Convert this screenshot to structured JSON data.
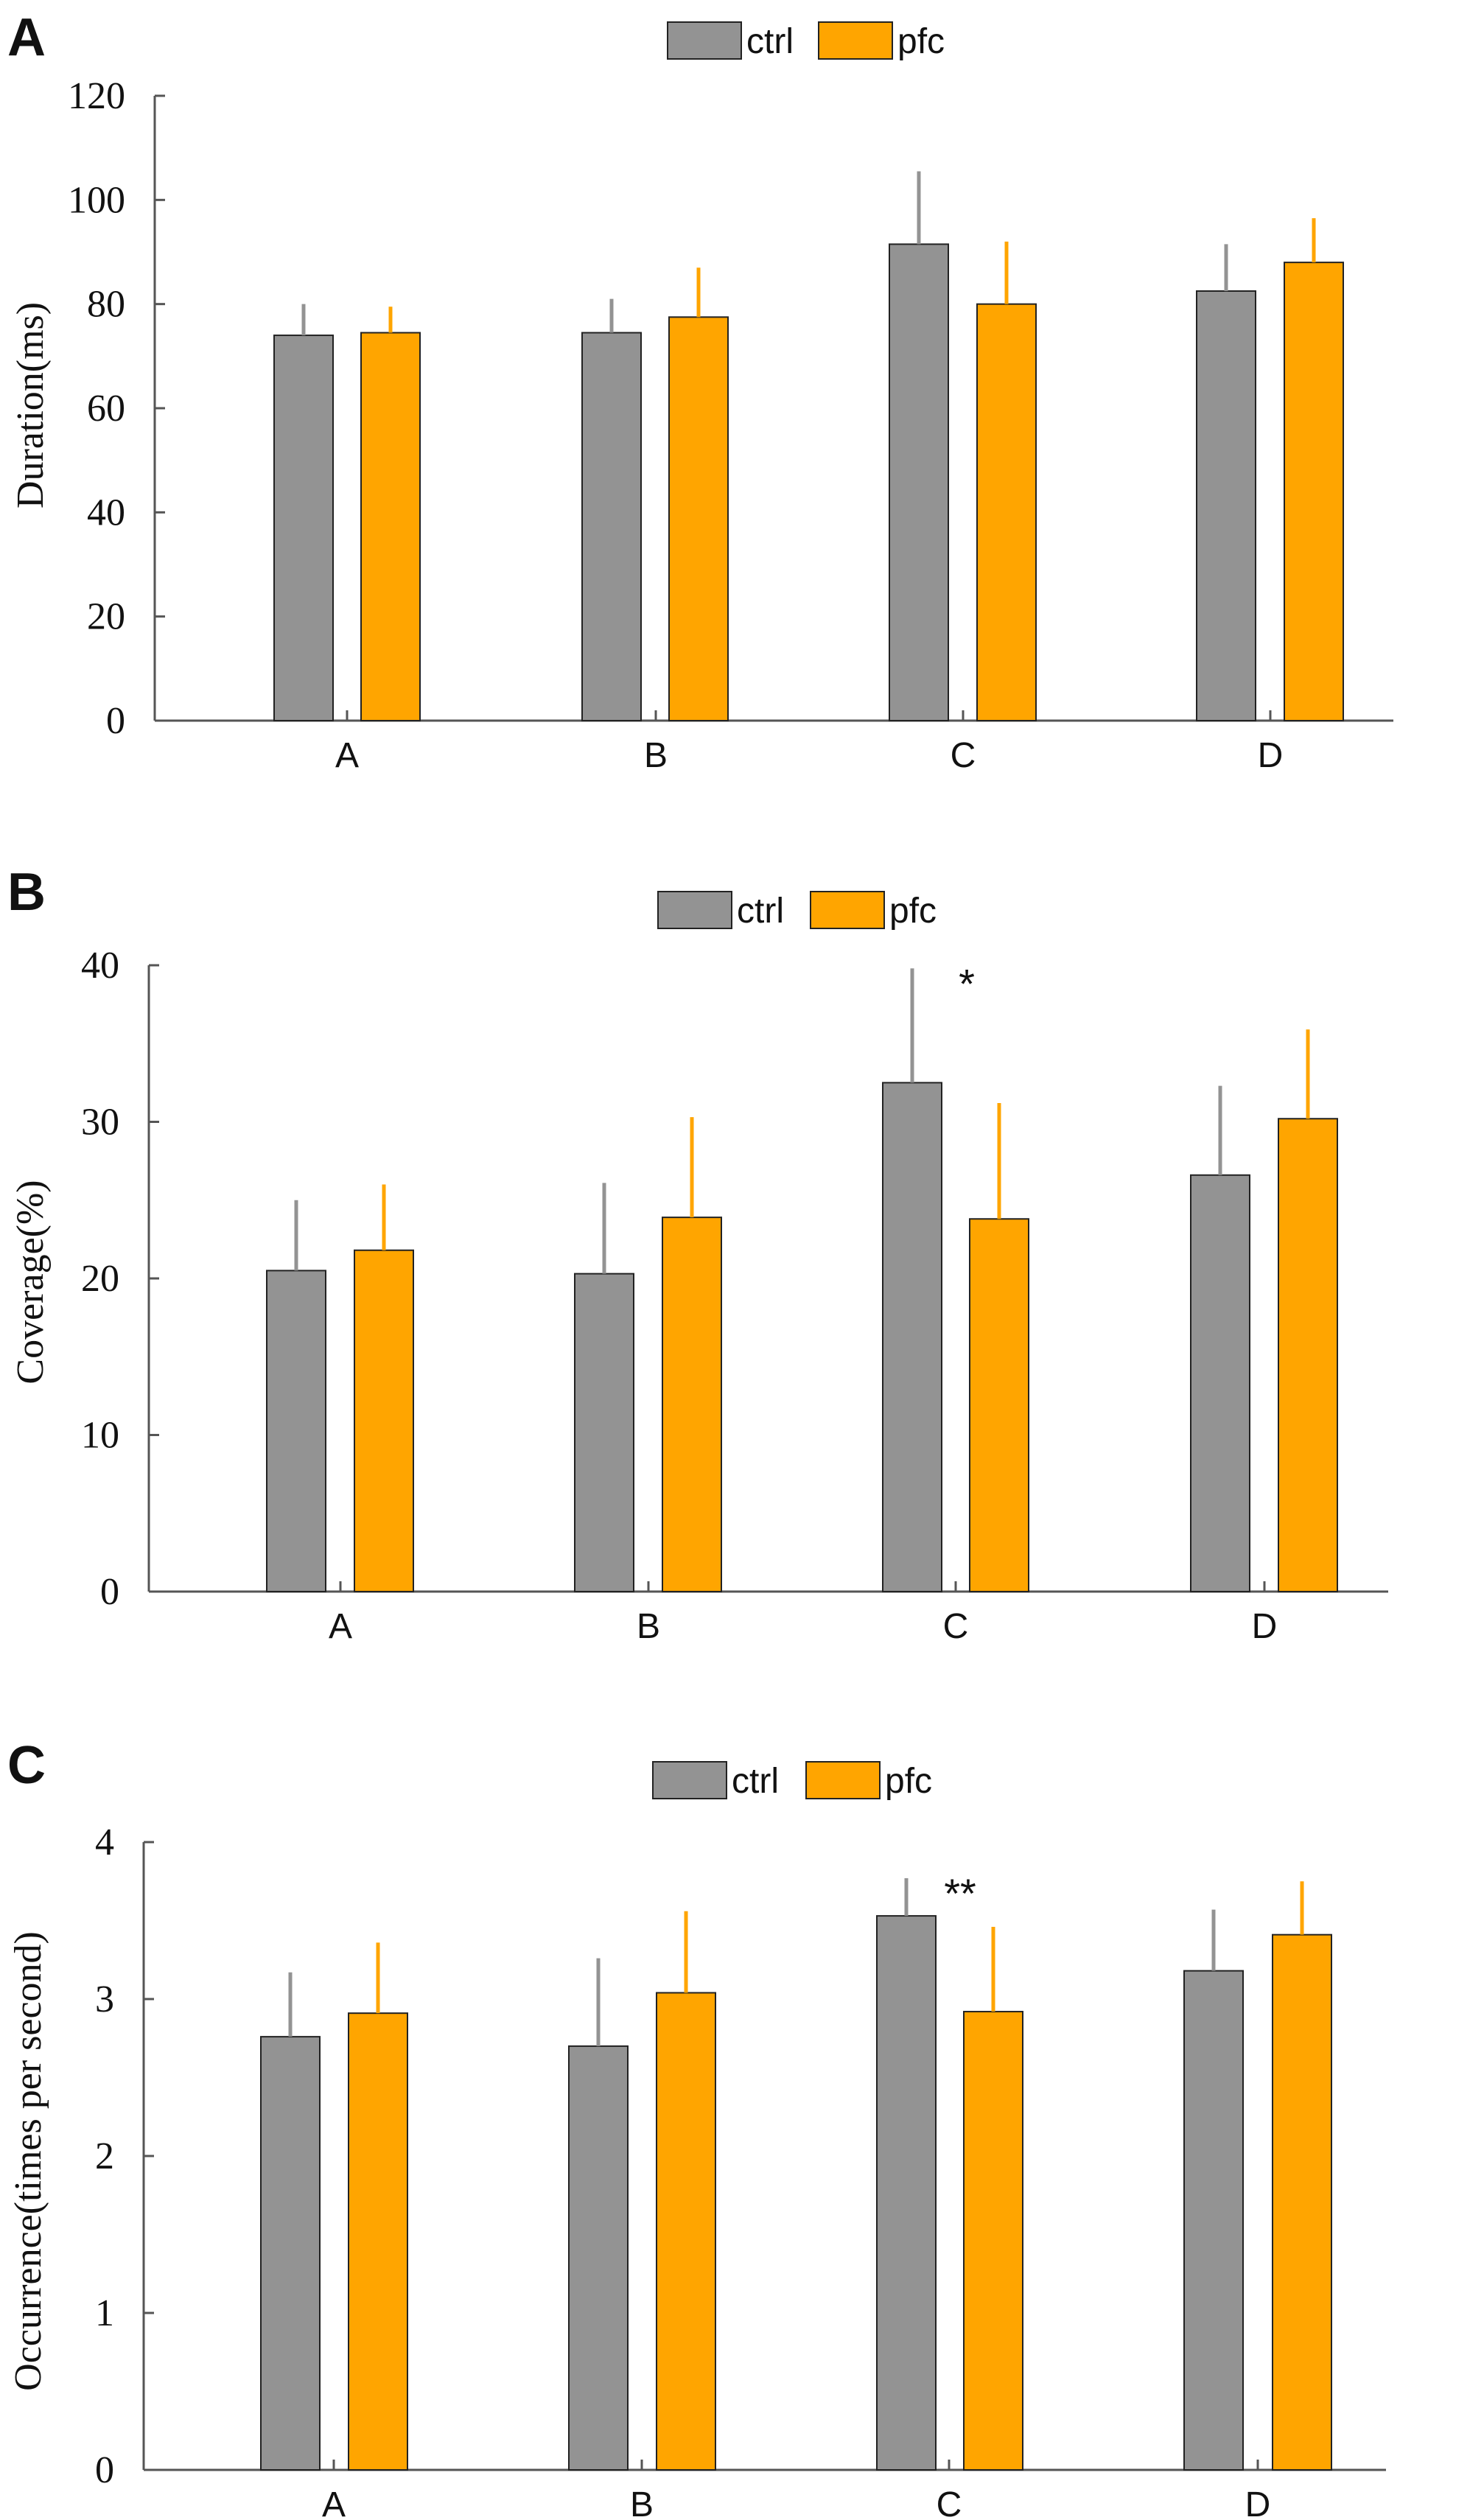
{
  "colors": {
    "ctrl": "#939393",
    "pfc": "#FFA500",
    "axis": "#555555",
    "bar_edge": "#222222"
  },
  "chart_data": [
    {
      "panel": "A",
      "type": "bar",
      "categories": [
        "A",
        "B",
        "C",
        "D"
      ],
      "series": [
        {
          "name": "ctrl",
          "values": [
            74,
            74.5,
            91.5,
            82.5
          ],
          "errors": [
            6,
            6.5,
            14,
            9
          ]
        },
        {
          "name": "pfc",
          "values": [
            74.5,
            77.5,
            80,
            88
          ],
          "errors": [
            5,
            9.5,
            12,
            8.5
          ]
        }
      ],
      "ylabel": "Duration(ms)",
      "ylim": [
        0,
        120
      ],
      "yticks": [
        "0",
        "20",
        "40",
        "60",
        "80",
        "100",
        "120"
      ],
      "legend": [
        "ctrl",
        "pfc"
      ],
      "legend_position": "top-center",
      "annotations": []
    },
    {
      "panel": "B",
      "type": "bar",
      "categories": [
        "A",
        "B",
        "C",
        "D"
      ],
      "series": [
        {
          "name": "ctrl",
          "values": [
            20.5,
            20.3,
            32.5,
            26.6
          ],
          "errors": [
            4.5,
            5.8,
            7.3,
            5.7
          ]
        },
        {
          "name": "pfc",
          "values": [
            21.8,
            23.9,
            23.8,
            30.2
          ],
          "errors": [
            4.2,
            6.4,
            7.4,
            5.7
          ]
        }
      ],
      "ylabel": "Coverage(%)",
      "ylim": [
        0,
        40
      ],
      "yticks": [
        "0",
        "10",
        "20",
        "30",
        "40"
      ],
      "legend": [
        "ctrl",
        "pfc"
      ],
      "legend_position": "top-center",
      "annotations": [
        {
          "text": "*",
          "category": "C"
        }
      ]
    },
    {
      "panel": "C",
      "type": "bar",
      "categories": [
        "A",
        "B",
        "C",
        "D"
      ],
      "series": [
        {
          "name": "ctrl",
          "values": [
            2.76,
            2.7,
            3.53,
            3.18
          ],
          "errors": [
            0.41,
            0.56,
            0.24,
            0.39
          ]
        },
        {
          "name": "pfc",
          "values": [
            2.91,
            3.04,
            2.92,
            3.41
          ],
          "errors": [
            0.45,
            0.52,
            0.54,
            0.34
          ]
        }
      ],
      "ylabel": "Occurrence(times per second)",
      "ylim": [
        0,
        4
      ],
      "yticks": [
        "0",
        "1",
        "2",
        "3",
        "4"
      ],
      "legend": [
        "ctrl",
        "pfc"
      ],
      "legend_position": "top-center",
      "annotations": [
        {
          "text": "**",
          "category": "C"
        }
      ]
    }
  ]
}
